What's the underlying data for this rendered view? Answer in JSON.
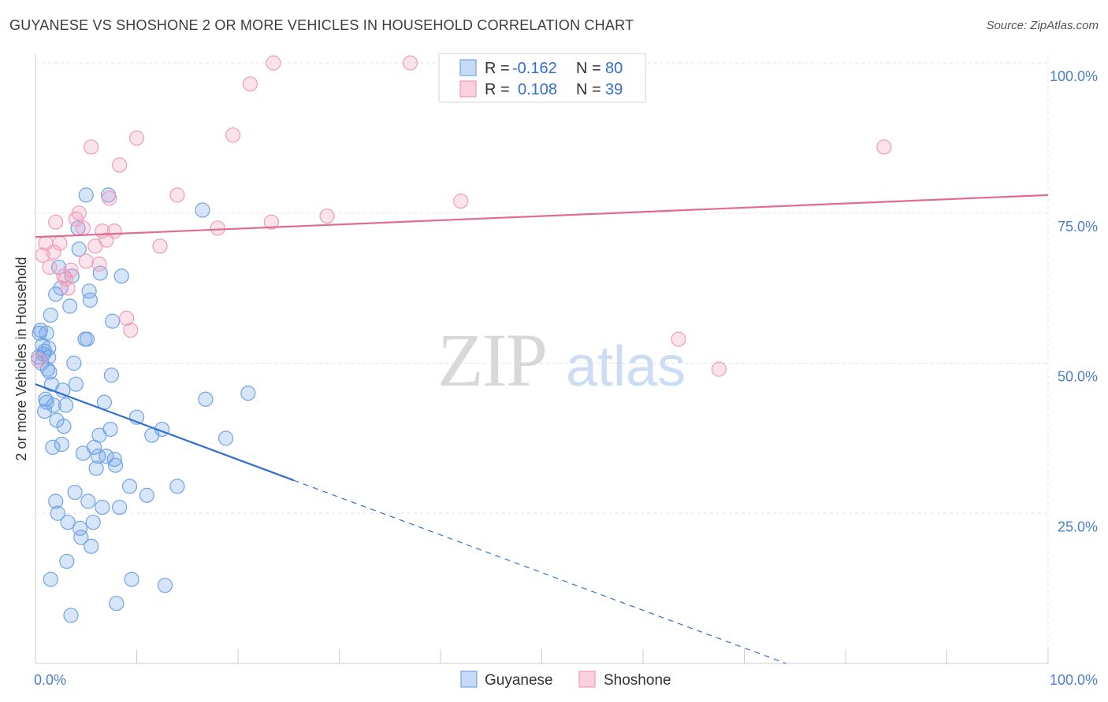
{
  "chart_data": {
    "type": "scatter",
    "title": "GUYANESE VS SHOSHONE 2 OR MORE VEHICLES IN HOUSEHOLD CORRELATION CHART",
    "source": "Source: ZipAtlas.com",
    "xlabel": "",
    "ylabel": "2 or more Vehicles in Household",
    "xlim": [
      0,
      100
    ],
    "ylim": [
      0,
      100
    ],
    "x_tick_labels": [
      "0.0%",
      "100.0%"
    ],
    "y_ticks": [
      {
        "value": 25,
        "label": "25.0%"
      },
      {
        "value": 50,
        "label": "50.0%"
      },
      {
        "value": 75,
        "label": "75.0%"
      },
      {
        "value": 100,
        "label": "100.0%"
      }
    ],
    "legend": [
      {
        "series": "Guyanese",
        "r_label": "R =",
        "r_value": "-0.162",
        "n_label": "N =",
        "n_value": "80",
        "color": "#6fa3e8"
      },
      {
        "series": "Shoshone",
        "r_label": "R =",
        "r_value": "0.108",
        "n_label": "N =",
        "n_value": "39",
        "color": "#f29ab8"
      }
    ],
    "watermark": {
      "part1": "ZIP",
      "part2": "atlas"
    },
    "series": [
      {
        "name": "Guyanese",
        "color": "#6fa3e8",
        "trend": {
          "x0": 0,
          "y0": 46.5,
          "x1": 25.5,
          "y1": 30.5,
          "dashed_to_x": 100,
          "color": "#2f6fd0"
        },
        "points": [
          [
            0.3,
            51.0
          ],
          [
            0.5,
            55.5
          ],
          [
            0.7,
            53.0
          ],
          [
            0.8,
            51.5
          ],
          [
            0.9,
            42.0
          ],
          [
            1.0,
            44.0
          ],
          [
            1.1,
            55.0
          ],
          [
            1.2,
            49.0
          ],
          [
            1.3,
            52.5
          ],
          [
            1.4,
            48.5
          ],
          [
            1.5,
            58.0
          ],
          [
            1.6,
            46.5
          ],
          [
            1.7,
            36.0
          ],
          [
            1.8,
            43.0
          ],
          [
            2.0,
            61.5
          ],
          [
            2.1,
            40.5
          ],
          [
            2.3,
            66.0
          ],
          [
            2.5,
            62.5
          ],
          [
            2.7,
            45.5
          ],
          [
            2.8,
            39.5
          ],
          [
            3.0,
            43.0
          ],
          [
            3.2,
            23.5
          ],
          [
            3.4,
            59.5
          ],
          [
            3.6,
            64.5
          ],
          [
            3.8,
            50.0
          ],
          [
            3.9,
            28.5
          ],
          [
            4.0,
            46.5
          ],
          [
            4.2,
            72.5
          ],
          [
            4.3,
            69.0
          ],
          [
            4.5,
            21.0
          ],
          [
            4.7,
            35.0
          ],
          [
            4.9,
            54.0
          ],
          [
            5.0,
            78.0
          ],
          [
            5.2,
            27.0
          ],
          [
            5.4,
            60.5
          ],
          [
            5.5,
            19.5
          ],
          [
            5.7,
            23.5
          ],
          [
            6.0,
            32.5
          ],
          [
            6.3,
            38.0
          ],
          [
            6.4,
            65.0
          ],
          [
            6.6,
            26.0
          ],
          [
            6.8,
            43.5
          ],
          [
            7.0,
            34.5
          ],
          [
            7.2,
            78.0
          ],
          [
            7.4,
            39.0
          ],
          [
            7.6,
            57.0
          ],
          [
            7.9,
            33.0
          ],
          [
            8.0,
            10.0
          ],
          [
            8.3,
            26.0
          ],
          [
            8.5,
            64.5
          ],
          [
            0.6,
            50.0
          ],
          [
            0.9,
            52.0
          ],
          [
            1.1,
            43.5
          ],
          [
            2.2,
            25.0
          ],
          [
            2.6,
            36.5
          ],
          [
            3.1,
            17.0
          ],
          [
            3.5,
            8.0
          ],
          [
            4.4,
            22.5
          ],
          [
            5.1,
            54.0
          ],
          [
            5.3,
            62.0
          ],
          [
            5.8,
            36.0
          ],
          [
            6.2,
            34.5
          ],
          [
            7.5,
            48.0
          ],
          [
            7.8,
            34.0
          ],
          [
            9.3,
            29.5
          ],
          [
            9.5,
            14.0
          ],
          [
            10.0,
            41.0
          ],
          [
            11.0,
            28.0
          ],
          [
            11.5,
            38.0
          ],
          [
            12.5,
            39.0
          ],
          [
            12.8,
            13.0
          ],
          [
            14.0,
            29.5
          ],
          [
            16.5,
            75.5
          ],
          [
            16.8,
            44.0
          ],
          [
            18.8,
            37.5
          ],
          [
            21.0,
            45.0
          ],
          [
            1.5,
            14.0
          ],
          [
            2.0,
            27.0
          ],
          [
            0.4,
            55.0
          ],
          [
            1.3,
            51.0
          ]
        ]
      },
      {
        "name": "Shoshone",
        "color": "#f29ab8",
        "trend": {
          "x0": 0,
          "y0": 71.0,
          "x1": 100,
          "y1": 78.0,
          "color": "#e26a93"
        },
        "points": [
          [
            0.3,
            50.5
          ],
          [
            0.7,
            68.0
          ],
          [
            1.0,
            70.0
          ],
          [
            1.4,
            66.0
          ],
          [
            1.8,
            68.5
          ],
          [
            2.0,
            73.5
          ],
          [
            2.4,
            70.0
          ],
          [
            2.8,
            64.5
          ],
          [
            3.2,
            62.5
          ],
          [
            3.5,
            65.5
          ],
          [
            4.0,
            74.0
          ],
          [
            4.3,
            75.0
          ],
          [
            4.7,
            72.5
          ],
          [
            5.0,
            67.0
          ],
          [
            5.5,
            86.0
          ],
          [
            5.9,
            69.5
          ],
          [
            6.3,
            66.5
          ],
          [
            6.6,
            72.0
          ],
          [
            7.0,
            70.5
          ],
          [
            7.3,
            77.5
          ],
          [
            7.8,
            72.0
          ],
          [
            8.3,
            83.0
          ],
          [
            9.0,
            57.5
          ],
          [
            9.4,
            55.5
          ],
          [
            10.0,
            87.5
          ],
          [
            12.3,
            69.5
          ],
          [
            14.0,
            78.0
          ],
          [
            18.0,
            72.5
          ],
          [
            19.5,
            88.0
          ],
          [
            21.2,
            96.5
          ],
          [
            23.3,
            73.5
          ],
          [
            23.5,
            100.0
          ],
          [
            28.8,
            74.5
          ],
          [
            37.0,
            100.0
          ],
          [
            42.0,
            77.0
          ],
          [
            63.5,
            54.0
          ],
          [
            67.5,
            49.0
          ],
          [
            83.8,
            86.0
          ],
          [
            3.0,
            64.0
          ]
        ]
      }
    ]
  }
}
